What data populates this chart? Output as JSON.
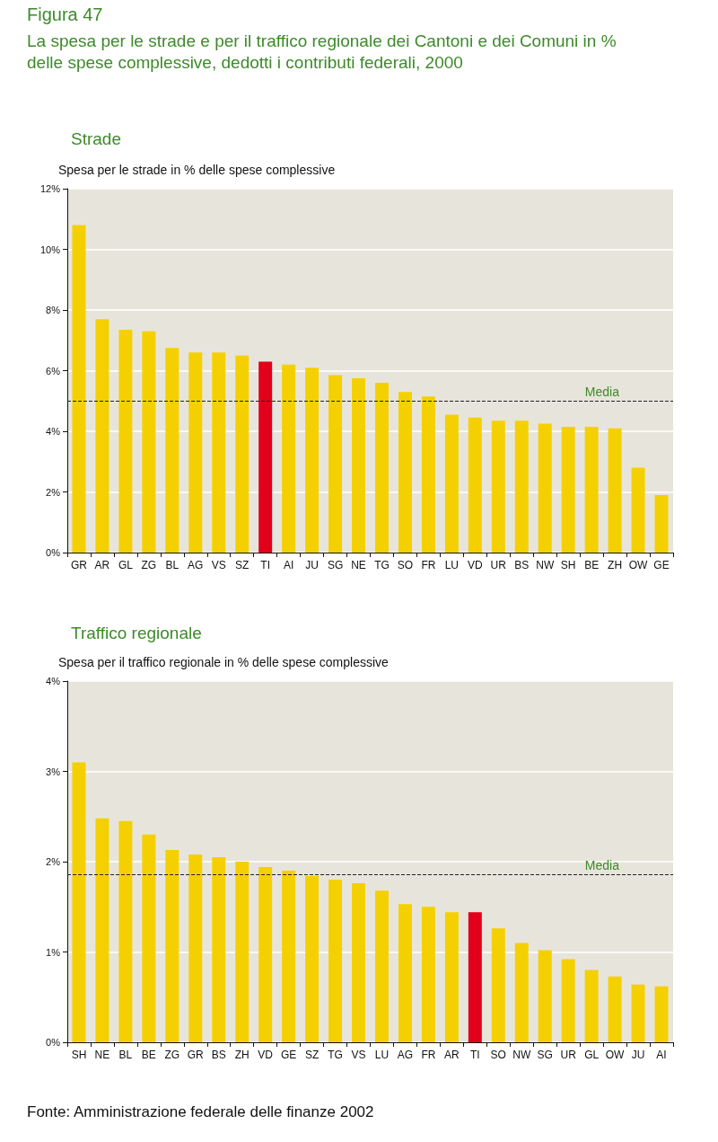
{
  "chart_data": [
    {
      "type": "bar",
      "title": "Strade",
      "ylabel": "Spesa per le strade in % delle spese complessive",
      "annotations": [
        "Figura 47",
        "La spesa per le strade e per il traffico regionale dei Cantoni e dei Comuni in % delle spese complessive, dedotti i contributi federali, 2000"
      ],
      "categories": [
        "GR",
        "AR",
        "GL",
        "ZG",
        "BL",
        "AG",
        "VS",
        "SZ",
        "TI",
        "AI",
        "JU",
        "SG",
        "NE",
        "TG",
        "SO",
        "FR",
        "LU",
        "VD",
        "UR",
        "BS",
        "NW",
        "SH",
        "BE",
        "ZH",
        "OW",
        "GE"
      ],
      "values": [
        10.8,
        7.7,
        7.35,
        7.3,
        6.75,
        6.6,
        6.6,
        6.5,
        6.3,
        6.2,
        6.1,
        5.85,
        5.75,
        5.6,
        5.3,
        5.15,
        4.55,
        4.45,
        4.35,
        4.35,
        4.25,
        4.15,
        4.15,
        4.1,
        2.8,
        1.9
      ],
      "colors": [
        "#f5d000",
        "#f5d000",
        "#f5d000",
        "#f5d000",
        "#f5d000",
        "#f5d000",
        "#f5d000",
        "#f5d000",
        "#e2001a",
        "#f5d000",
        "#f5d000",
        "#f5d000",
        "#f5d000",
        "#f5d000",
        "#f5d000",
        "#f5d000",
        "#f5d000",
        "#f5d000",
        "#f5d000",
        "#f5d000",
        "#f5d000",
        "#f5d000",
        "#f5d000",
        "#f5d000",
        "#f5d000",
        "#f5d000"
      ],
      "ylim": [
        0,
        12
      ],
      "yticks": [
        {
          "value": 0,
          "label": "0%"
        },
        {
          "value": 2,
          "label": "2%"
        },
        {
          "value": 4,
          "label": "4%"
        },
        {
          "value": 6,
          "label": "6%"
        },
        {
          "value": 8,
          "label": "8%"
        },
        {
          "value": 10,
          "label": "10%"
        },
        {
          "value": 12,
          "label": "12%"
        }
      ],
      "grid": "y",
      "ref_lines": [
        {
          "axis": "y",
          "value": 5.0,
          "label": "Media",
          "color": "#222222",
          "line_style": "dashed"
        }
      ]
    },
    {
      "type": "bar",
      "title": "Traffico regionale",
      "ylabel": "Spesa per il traffico regionale in % delle spese complessive",
      "annotations": [
        "Fonte: Amministrazione federale delle finanze 2002"
      ],
      "categories": [
        "SH",
        "NE",
        "BL",
        "BE",
        "ZG",
        "GR",
        "BS",
        "ZH",
        "VD",
        "GE",
        "SZ",
        "TG",
        "VS",
        "LU",
        "AG",
        "FR",
        "AR",
        "TI",
        "SO",
        "NW",
        "SG",
        "UR",
        "GL",
        "OW",
        "JU",
        "AI"
      ],
      "values": [
        3.1,
        2.48,
        2.45,
        2.3,
        2.13,
        2.08,
        2.05,
        2.0,
        1.94,
        1.9,
        1.84,
        1.8,
        1.76,
        1.68,
        1.53,
        1.5,
        1.44,
        1.44,
        1.26,
        1.1,
        1.02,
        0.92,
        0.8,
        0.73,
        0.64,
        0.62
      ],
      "colors": [
        "#f5d000",
        "#f5d000",
        "#f5d000",
        "#f5d000",
        "#f5d000",
        "#f5d000",
        "#f5d000",
        "#f5d000",
        "#f5d000",
        "#f5d000",
        "#f5d000",
        "#f5d000",
        "#f5d000",
        "#f5d000",
        "#f5d000",
        "#f5d000",
        "#f5d000",
        "#e2001a",
        "#f5d000",
        "#f5d000",
        "#f5d000",
        "#f5d000",
        "#f5d000",
        "#f5d000",
        "#f5d000",
        "#f5d000"
      ],
      "ylim": [
        0,
        4
      ],
      "yticks": [
        {
          "value": 0,
          "label": "0%"
        },
        {
          "value": 1,
          "label": "1%"
        },
        {
          "value": 2,
          "label": "2%"
        },
        {
          "value": 3,
          "label": "3%"
        },
        {
          "value": 4,
          "label": "4%"
        }
      ],
      "grid": "y",
      "ref_lines": [
        {
          "axis": "y",
          "value": 1.86,
          "label": "Media",
          "color": "#222222",
          "line_style": "dashed"
        }
      ]
    }
  ]
}
